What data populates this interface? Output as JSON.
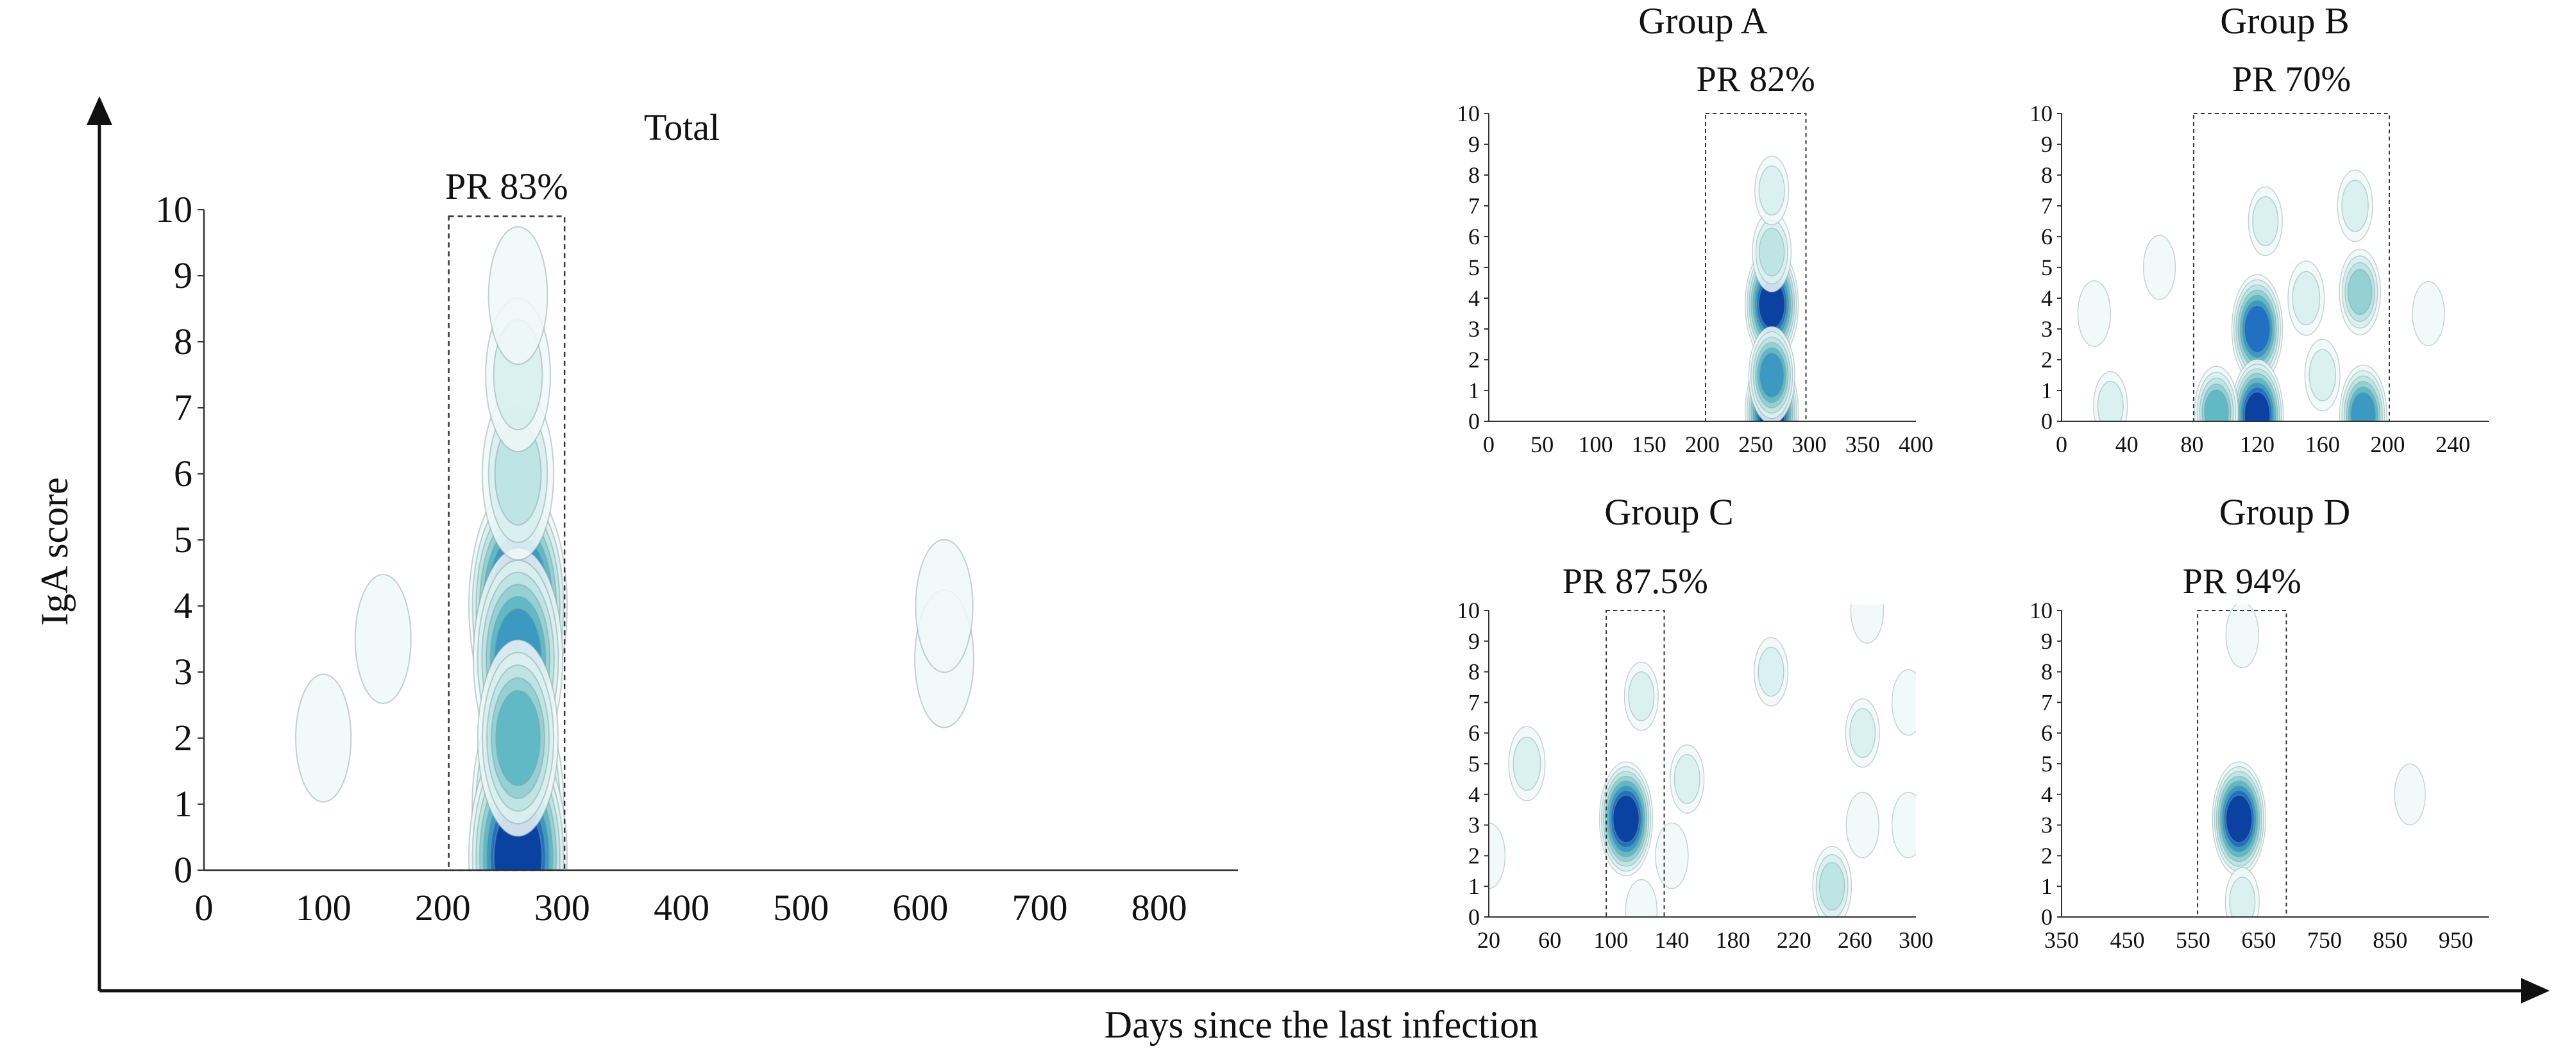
{
  "axes": {
    "ylabel": "IgA score",
    "xlabel": "Days since the last infection"
  },
  "chart_data": [
    {
      "id": "total",
      "type": "heatmap",
      "title": "Total",
      "pr_label": "PR 83%",
      "xlim": [
        0,
        866
      ],
      "ylim": [
        0,
        10
      ],
      "x_ticks": [
        0,
        100,
        200,
        300,
        400,
        500,
        600,
        700,
        800
      ],
      "y_ticks": [
        0,
        1,
        2,
        3,
        4,
        5,
        6,
        7,
        8,
        9,
        10
      ],
      "pr_window": [
        205,
        302
      ],
      "pr_window_ymax": 9.9,
      "density_blobs": [
        {
          "x": 263,
          "y": 4.0,
          "intensity": 1.0
        },
        {
          "x": 263,
          "y": 3.2,
          "intensity": 0.8
        },
        {
          "x": 263,
          "y": 1.0,
          "intensity": 0.85
        },
        {
          "x": 263,
          "y": 0.2,
          "intensity": 1.0
        },
        {
          "x": 263,
          "y": 2.0,
          "intensity": 0.6
        },
        {
          "x": 263,
          "y": 6.0,
          "intensity": 0.4
        },
        {
          "x": 263,
          "y": 7.5,
          "intensity": 0.25
        },
        {
          "x": 263,
          "y": 8.7,
          "intensity": 0.12
        },
        {
          "x": 150,
          "y": 3.5,
          "intensity": 0.05
        },
        {
          "x": 100,
          "y": 2.0,
          "intensity": 0.04
        },
        {
          "x": 620,
          "y": 3.2,
          "intensity": 0.12
        },
        {
          "x": 620,
          "y": 4.0,
          "intensity": 0.08
        }
      ]
    },
    {
      "id": "group-a",
      "type": "heatmap",
      "title": "Group A",
      "pr_label": "PR 82%",
      "xlim": [
        0,
        400
      ],
      "ylim": [
        0,
        10
      ],
      "x_ticks": [
        0,
        50,
        100,
        150,
        200,
        250,
        300,
        350,
        400
      ],
      "y_ticks": [
        0,
        1,
        2,
        3,
        4,
        5,
        6,
        7,
        8,
        9,
        10
      ],
      "pr_window": [
        203,
        297
      ],
      "pr_window_ymax": 10,
      "density_blobs": [
        {
          "x": 265,
          "y": 3.8,
          "intensity": 1.0
        },
        {
          "x": 265,
          "y": 0.3,
          "intensity": 1.0
        },
        {
          "x": 265,
          "y": 1.5,
          "intensity": 0.7
        },
        {
          "x": 265,
          "y": 5.5,
          "intensity": 0.4
        },
        {
          "x": 265,
          "y": 7.5,
          "intensity": 0.2
        }
      ]
    },
    {
      "id": "group-b",
      "type": "heatmap",
      "title": "Group B",
      "pr_label": "PR 70%",
      "xlim": [
        0,
        262
      ],
      "ylim": [
        0,
        10
      ],
      "x_ticks": [
        0,
        40,
        80,
        120,
        160,
        200,
        240
      ],
      "y_ticks": [
        0,
        1,
        2,
        3,
        4,
        5,
        6,
        7,
        8,
        9,
        10
      ],
      "pr_window": [
        81,
        201
      ],
      "pr_window_ymax": 10,
      "density_blobs": [
        {
          "x": 120,
          "y": 3.0,
          "intensity": 0.9
        },
        {
          "x": 120,
          "y": 0.2,
          "intensity": 0.95
        },
        {
          "x": 95,
          "y": 0.3,
          "intensity": 0.6
        },
        {
          "x": 185,
          "y": 0.2,
          "intensity": 0.75
        },
        {
          "x": 183,
          "y": 4.2,
          "intensity": 0.5
        },
        {
          "x": 180,
          "y": 7.0,
          "intensity": 0.25
        },
        {
          "x": 150,
          "y": 4.0,
          "intensity": 0.3
        },
        {
          "x": 125,
          "y": 6.5,
          "intensity": 0.2
        },
        {
          "x": 20,
          "y": 3.5,
          "intensity": 0.15
        },
        {
          "x": 30,
          "y": 0.5,
          "intensity": 0.2
        },
        {
          "x": 60,
          "y": 5.0,
          "intensity": 0.12
        },
        {
          "x": 225,
          "y": 3.5,
          "intensity": 0.12
        },
        {
          "x": 160,
          "y": 1.5,
          "intensity": 0.25
        }
      ]
    },
    {
      "id": "group-c",
      "type": "heatmap",
      "title": "Group C",
      "pr_label": "PR 87.5%",
      "xlim": [
        20,
        300
      ],
      "ylim": [
        0,
        10
      ],
      "x_ticks": [
        20,
        60,
        100,
        140,
        180,
        220,
        260,
        300
      ],
      "y_ticks": [
        0,
        1,
        2,
        3,
        4,
        5,
        6,
        7,
        8,
        9,
        10
      ],
      "pr_window": [
        97,
        135
      ],
      "pr_window_ymax": 10,
      "density_blobs": [
        {
          "x": 110,
          "y": 3.2,
          "intensity": 1.0
        },
        {
          "x": 45,
          "y": 5.0,
          "intensity": 0.3
        },
        {
          "x": 120,
          "y": 7.2,
          "intensity": 0.2
        },
        {
          "x": 150,
          "y": 4.5,
          "intensity": 0.2
        },
        {
          "x": 140,
          "y": 2.0,
          "intensity": 0.15
        },
        {
          "x": 205,
          "y": 8.0,
          "intensity": 0.2
        },
        {
          "x": 265,
          "y": 6.0,
          "intensity": 0.2
        },
        {
          "x": 268,
          "y": 10.0,
          "intensity": 0.15
        },
        {
          "x": 245,
          "y": 1.0,
          "intensity": 0.4
        },
        {
          "x": 265,
          "y": 3.0,
          "intensity": 0.15
        },
        {
          "x": 295,
          "y": 7.0,
          "intensity": 0.15
        },
        {
          "x": 295,
          "y": 3.0,
          "intensity": 0.15
        },
        {
          "x": 20,
          "y": 2.0,
          "intensity": 0.15
        },
        {
          "x": 120,
          "y": 0.2,
          "intensity": 0.1
        }
      ]
    },
    {
      "id": "group-d",
      "type": "heatmap",
      "title": "Group D",
      "pr_label": "PR 94%",
      "xlim": [
        350,
        1000
      ],
      "ylim": [
        0,
        10
      ],
      "x_ticks": [
        350,
        450,
        550,
        650,
        750,
        850,
        950
      ],
      "y_ticks": [
        0,
        1,
        2,
        3,
        4,
        5,
        6,
        7,
        8,
        9,
        10
      ],
      "pr_window": [
        557,
        692
      ],
      "pr_window_ymax": 10,
      "density_blobs": [
        {
          "x": 620,
          "y": 3.2,
          "intensity": 1.0
        },
        {
          "x": 625,
          "y": 9.2,
          "intensity": 0.15
        },
        {
          "x": 625,
          "y": 0.5,
          "intensity": 0.2
        },
        {
          "x": 880,
          "y": 4.0,
          "intensity": 0.07
        }
      ]
    }
  ],
  "colors": {
    "levels": [
      "#f0f8f8",
      "#d9efef",
      "#bde3e3",
      "#92cfd3",
      "#5fb7c5",
      "#3a97c2",
      "#1f6fc2",
      "#0b3fa0"
    ],
    "contour": "#7f9c9f",
    "axis": "#333333",
    "window": "#333333"
  }
}
